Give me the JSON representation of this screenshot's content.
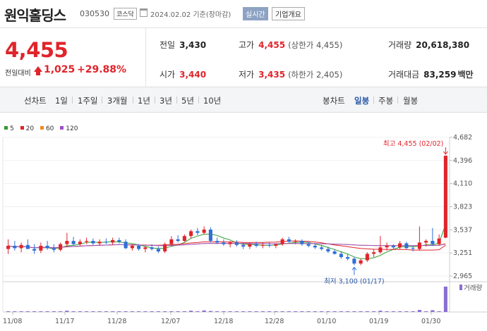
{
  "header": {
    "stock_name": "원익홀딩스",
    "stock_code": "030530",
    "market": "코스닥",
    "date_info": "2024.02.02  기준(장마감)",
    "live_button": "실시간",
    "company_button": "기업개요"
  },
  "price": {
    "current": "4,455",
    "change_label": "전일대비",
    "change": "1,025",
    "change_pct": "+29.88%",
    "up_color": "#e0242b"
  },
  "stats": {
    "prev_label": "전일",
    "prev": "3,430",
    "open_label": "시가",
    "open": "3,440",
    "high_label": "고가",
    "high": "4,455",
    "upper_limit": "(상한가 4,455)",
    "low_label": "저가",
    "low": "3,435",
    "lower_limit": "(하한가 2,405)",
    "volume_label": "거래량",
    "volume": "20,618,380",
    "amount_label": "거래대금",
    "amount": "83,259",
    "amount_unit": "백만"
  },
  "tabs": {
    "line_chart": "선차트",
    "periods": [
      "1일",
      "1주일",
      "3개월",
      "1년",
      "3년",
      "5년",
      "10년"
    ],
    "candle_chart": "봉차트",
    "candles": [
      "일봉",
      "주봉",
      "월봉"
    ],
    "selected": "일봉"
  },
  "legend": [
    {
      "label": "5",
      "color": "#2e9e2e"
    },
    {
      "label": "20",
      "color": "#e0242b"
    },
    {
      "label": "60",
      "color": "#f28a1b"
    },
    {
      "label": "120",
      "color": "#9b4fc9"
    }
  ],
  "chart_data": {
    "type": "candlestick",
    "yticks": [
      "4,682",
      "4,396",
      "4,110",
      "3,823",
      "3,537",
      "3,251",
      "2,965"
    ],
    "ylim": [
      2965,
      4682
    ],
    "xticks": [
      "11/08",
      "11/17",
      "11/28",
      "12/07",
      "12/18",
      "12/28",
      "01/10",
      "01/19",
      "01/30"
    ],
    "high_annotation": "최고 4,455 (02/02)",
    "low_annotation": "최저 3,100 (01/17)",
    "volume_label": "거래량",
    "up_color": "#e0242b",
    "down_color": "#2f6fd6",
    "candles": [
      {
        "o": 3300,
        "h": 3420,
        "l": 3240,
        "c": 3340
      },
      {
        "o": 3340,
        "h": 3400,
        "l": 3280,
        "c": 3310
      },
      {
        "o": 3310,
        "h": 3380,
        "l": 3260,
        "c": 3350
      },
      {
        "o": 3350,
        "h": 3420,
        "l": 3300,
        "c": 3300
      },
      {
        "o": 3300,
        "h": 3360,
        "l": 3240,
        "c": 3280
      },
      {
        "o": 3280,
        "h": 3380,
        "l": 3250,
        "c": 3340
      },
      {
        "o": 3340,
        "h": 3400,
        "l": 3290,
        "c": 3310
      },
      {
        "o": 3310,
        "h": 3360,
        "l": 3260,
        "c": 3290
      },
      {
        "o": 3290,
        "h": 3380,
        "l": 3270,
        "c": 3360
      },
      {
        "o": 3360,
        "h": 3500,
        "l": 3320,
        "c": 3400
      },
      {
        "o": 3400,
        "h": 3450,
        "l": 3340,
        "c": 3360
      },
      {
        "o": 3360,
        "h": 3420,
        "l": 3330,
        "c": 3390
      },
      {
        "o": 3390,
        "h": 3440,
        "l": 3360,
        "c": 3400
      },
      {
        "o": 3400,
        "h": 3430,
        "l": 3350,
        "c": 3370
      },
      {
        "o": 3370,
        "h": 3420,
        "l": 3340,
        "c": 3390
      },
      {
        "o": 3390,
        "h": 3430,
        "l": 3360,
        "c": 3380
      },
      {
        "o": 3380,
        "h": 3440,
        "l": 3350,
        "c": 3410
      },
      {
        "o": 3410,
        "h": 3440,
        "l": 3370,
        "c": 3390
      },
      {
        "o": 3390,
        "h": 3420,
        "l": 3300,
        "c": 3310
      },
      {
        "o": 3310,
        "h": 3360,
        "l": 3280,
        "c": 3340
      },
      {
        "o": 3340,
        "h": 3360,
        "l": 3280,
        "c": 3300
      },
      {
        "o": 3300,
        "h": 3340,
        "l": 3260,
        "c": 3320
      },
      {
        "o": 3320,
        "h": 3360,
        "l": 3280,
        "c": 3300
      },
      {
        "o": 3300,
        "h": 3330,
        "l": 3250,
        "c": 3270
      },
      {
        "o": 3270,
        "h": 3380,
        "l": 3250,
        "c": 3360
      },
      {
        "o": 3360,
        "h": 3460,
        "l": 3330,
        "c": 3420
      },
      {
        "o": 3420,
        "h": 3470,
        "l": 3380,
        "c": 3400
      },
      {
        "o": 3400,
        "h": 3480,
        "l": 3390,
        "c": 3460
      },
      {
        "o": 3460,
        "h": 3540,
        "l": 3430,
        "c": 3520
      },
      {
        "o": 3520,
        "h": 3560,
        "l": 3470,
        "c": 3500
      },
      {
        "o": 3500,
        "h": 3580,
        "l": 3480,
        "c": 3540
      },
      {
        "o": 3540,
        "h": 3570,
        "l": 3380,
        "c": 3400
      },
      {
        "o": 3400,
        "h": 3440,
        "l": 3360,
        "c": 3380
      },
      {
        "o": 3380,
        "h": 3420,
        "l": 3340,
        "c": 3360
      },
      {
        "o": 3360,
        "h": 3400,
        "l": 3320,
        "c": 3380
      },
      {
        "o": 3380,
        "h": 3410,
        "l": 3330,
        "c": 3350
      },
      {
        "o": 3350,
        "h": 3380,
        "l": 3300,
        "c": 3330
      },
      {
        "o": 3330,
        "h": 3380,
        "l": 3300,
        "c": 3360
      },
      {
        "o": 3360,
        "h": 3390,
        "l": 3320,
        "c": 3340
      },
      {
        "o": 3340,
        "h": 3380,
        "l": 3310,
        "c": 3350
      },
      {
        "o": 3350,
        "h": 3380,
        "l": 3320,
        "c": 3340
      },
      {
        "o": 3340,
        "h": 3370,
        "l": 3310,
        "c": 3360
      },
      {
        "o": 3360,
        "h": 3440,
        "l": 3340,
        "c": 3420
      },
      {
        "o": 3420,
        "h": 3450,
        "l": 3380,
        "c": 3390
      },
      {
        "o": 3390,
        "h": 3420,
        "l": 3360,
        "c": 3400
      },
      {
        "o": 3400,
        "h": 3420,
        "l": 3340,
        "c": 3360
      },
      {
        "o": 3360,
        "h": 3390,
        "l": 3320,
        "c": 3340
      },
      {
        "o": 3340,
        "h": 3370,
        "l": 3300,
        "c": 3320
      },
      {
        "o": 3320,
        "h": 3350,
        "l": 3280,
        "c": 3300
      },
      {
        "o": 3300,
        "h": 3330,
        "l": 3250,
        "c": 3270
      },
      {
        "o": 3270,
        "h": 3300,
        "l": 3230,
        "c": 3240
      },
      {
        "o": 3240,
        "h": 3270,
        "l": 3180,
        "c": 3200
      },
      {
        "o": 3200,
        "h": 3240,
        "l": 3160,
        "c": 3180
      },
      {
        "o": 3180,
        "h": 3200,
        "l": 3100,
        "c": 3120
      },
      {
        "o": 3120,
        "h": 3180,
        "l": 3100,
        "c": 3160
      },
      {
        "o": 3160,
        "h": 3260,
        "l": 3140,
        "c": 3240
      },
      {
        "o": 3240,
        "h": 3300,
        "l": 3200,
        "c": 3260
      },
      {
        "o": 3260,
        "h": 3460,
        "l": 3240,
        "c": 3320
      },
      {
        "o": 3320,
        "h": 3380,
        "l": 3280,
        "c": 3340
      },
      {
        "o": 3340,
        "h": 3360,
        "l": 3300,
        "c": 3320
      },
      {
        "o": 3320,
        "h": 3400,
        "l": 3300,
        "c": 3370
      },
      {
        "o": 3370,
        "h": 3390,
        "l": 3300,
        "c": 3310
      },
      {
        "o": 3310,
        "h": 3340,
        "l": 3270,
        "c": 3300
      },
      {
        "o": 3300,
        "h": 3580,
        "l": 3280,
        "c": 3380
      },
      {
        "o": 3380,
        "h": 3420,
        "l": 3330,
        "c": 3400
      },
      {
        "o": 3400,
        "h": 3560,
        "l": 3340,
        "c": 3360
      },
      {
        "o": 3360,
        "h": 3480,
        "l": 3340,
        "c": 3430
      },
      {
        "o": 3440,
        "h": 4455,
        "l": 3435,
        "c": 4455
      }
    ],
    "volumes": [
      0.02,
      0.01,
      0.02,
      0.02,
      0.01,
      0.01,
      0.02,
      0.01,
      0.01,
      0.05,
      0.02,
      0.01,
      0.01,
      0.01,
      0.01,
      0.01,
      0.01,
      0.01,
      0.02,
      0.01,
      0.01,
      0.01,
      0.01,
      0.01,
      0.02,
      0.03,
      0.02,
      0.03,
      0.05,
      0.03,
      0.06,
      0.04,
      0.02,
      0.01,
      0.01,
      0.01,
      0.01,
      0.01,
      0.01,
      0.01,
      0.01,
      0.01,
      0.02,
      0.01,
      0.01,
      0.01,
      0.01,
      0.01,
      0.01,
      0.01,
      0.01,
      0.02,
      0.01,
      0.02,
      0.01,
      0.03,
      0.02,
      0.05,
      0.02,
      0.01,
      0.02,
      0.01,
      0.01,
      0.08,
      0.02,
      0.07,
      0.03,
      1.0
    ]
  }
}
